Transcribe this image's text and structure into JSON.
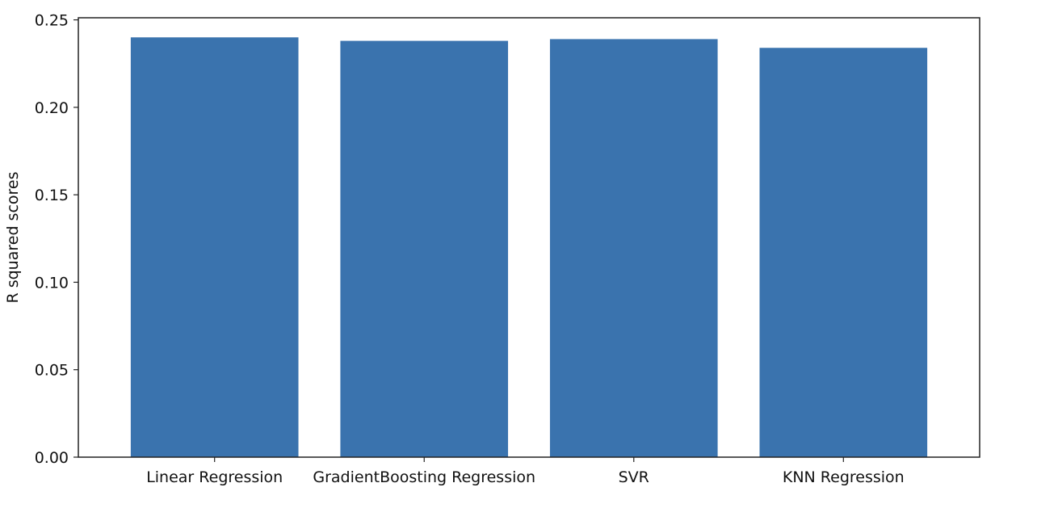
{
  "chart_data": {
    "type": "bar",
    "title": "",
    "xlabel": "",
    "ylabel": "R squared scores",
    "categories": [
      "Linear Regression",
      "GradientBoosting Regression",
      "SVR",
      "KNN Regression"
    ],
    "values": [
      0.24,
      0.238,
      0.239,
      0.234
    ],
    "ylim": [
      0,
      0.2512
    ],
    "yticks": [
      0.0,
      0.05,
      0.1,
      0.15,
      0.2,
      0.25
    ],
    "ytick_labels": [
      "0.00",
      "0.05",
      "0.10",
      "0.15",
      "0.20",
      "0.25"
    ],
    "grid": false,
    "legend": "none",
    "bar_color": "#3a73ae"
  }
}
